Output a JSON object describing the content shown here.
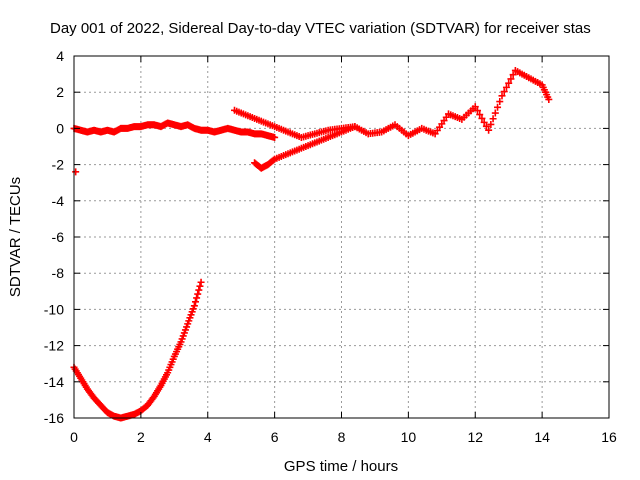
{
  "chart_data": {
    "type": "scatter",
    "title": "Day 001 of 2022, Sidereal Day-to-day VTEC variation (SDTVAR) for receiver stas",
    "xlabel": "GPS time / hours",
    "ylabel": "SDTVAR / TECUs",
    "xlim": [
      0,
      16
    ],
    "ylim": [
      -16,
      4
    ],
    "xticks": [
      0,
      2,
      4,
      6,
      8,
      10,
      12,
      14,
      16
    ],
    "yticks": [
      -16,
      -14,
      -12,
      -10,
      -8,
      -6,
      -4,
      -2,
      0,
      2,
      4
    ],
    "grid": true,
    "marker": "plus",
    "color": "#ff0000",
    "series": [
      {
        "name": "near-zero band",
        "x": [
          0.0,
          0.2,
          0.4,
          0.6,
          0.8,
          1.0,
          1.2,
          1.4,
          1.6,
          1.8,
          2.0,
          2.2,
          2.4,
          2.6,
          2.8,
          3.0,
          3.2,
          3.4,
          3.6,
          3.8,
          4.0,
          4.2,
          4.4,
          4.6,
          4.8,
          5.0,
          5.2,
          5.4,
          5.6,
          5.8,
          6.0
        ],
        "y": [
          0.0,
          -0.1,
          -0.2,
          -0.1,
          -0.2,
          -0.1,
          -0.2,
          0.0,
          0.0,
          0.1,
          0.1,
          0.2,
          0.2,
          0.1,
          0.3,
          0.2,
          0.1,
          0.2,
          0.0,
          -0.1,
          -0.1,
          -0.2,
          -0.1,
          0.0,
          -0.1,
          -0.2,
          -0.2,
          -0.3,
          -0.3,
          -0.4,
          -0.5
        ]
      },
      {
        "name": "lower arc",
        "x": [
          0.0,
          0.2,
          0.4,
          0.6,
          0.8,
          1.0,
          1.2,
          1.4,
          1.6,
          1.8,
          2.0,
          2.2,
          2.4,
          2.6,
          2.8,
          3.0,
          3.2,
          3.4,
          3.6,
          3.8
        ],
        "y": [
          -13.2,
          -13.8,
          -14.4,
          -14.9,
          -15.3,
          -15.7,
          -15.9,
          -16.0,
          -15.9,
          -15.8,
          -15.6,
          -15.3,
          -14.8,
          -14.2,
          -13.5,
          -12.6,
          -11.8,
          -10.8,
          -9.8,
          -8.5
        ]
      },
      {
        "name": "afternoon spread",
        "x": [
          4.8,
          5.2,
          5.6,
          6.0,
          6.4,
          6.8,
          7.2,
          7.6,
          8.0,
          8.4,
          8.8,
          9.2,
          9.6,
          10.0,
          10.4,
          10.8,
          11.2,
          11.6,
          12.0,
          12.4,
          12.8,
          13.2,
          13.6,
          14.0,
          14.2
        ],
        "y": [
          1.0,
          0.7,
          0.4,
          0.1,
          -0.2,
          -0.5,
          -0.3,
          -0.1,
          0.0,
          0.1,
          -0.3,
          -0.2,
          0.2,
          -0.4,
          0.0,
          -0.3,
          0.8,
          0.5,
          1.2,
          -0.1,
          1.8,
          3.2,
          2.8,
          2.4,
          1.6
        ]
      },
      {
        "name": "rising branch",
        "x": [
          5.4,
          5.6,
          5.8,
          6.0,
          6.4,
          6.8,
          7.2,
          7.6,
          8.0,
          8.4
        ],
        "y": [
          -1.9,
          -2.2,
          -2.0,
          -1.7,
          -1.4,
          -1.1,
          -0.8,
          -0.5,
          -0.2,
          0.1
        ]
      },
      {
        "name": "outlier",
        "x": [
          0.05
        ],
        "y": [
          -2.4
        ]
      }
    ]
  }
}
